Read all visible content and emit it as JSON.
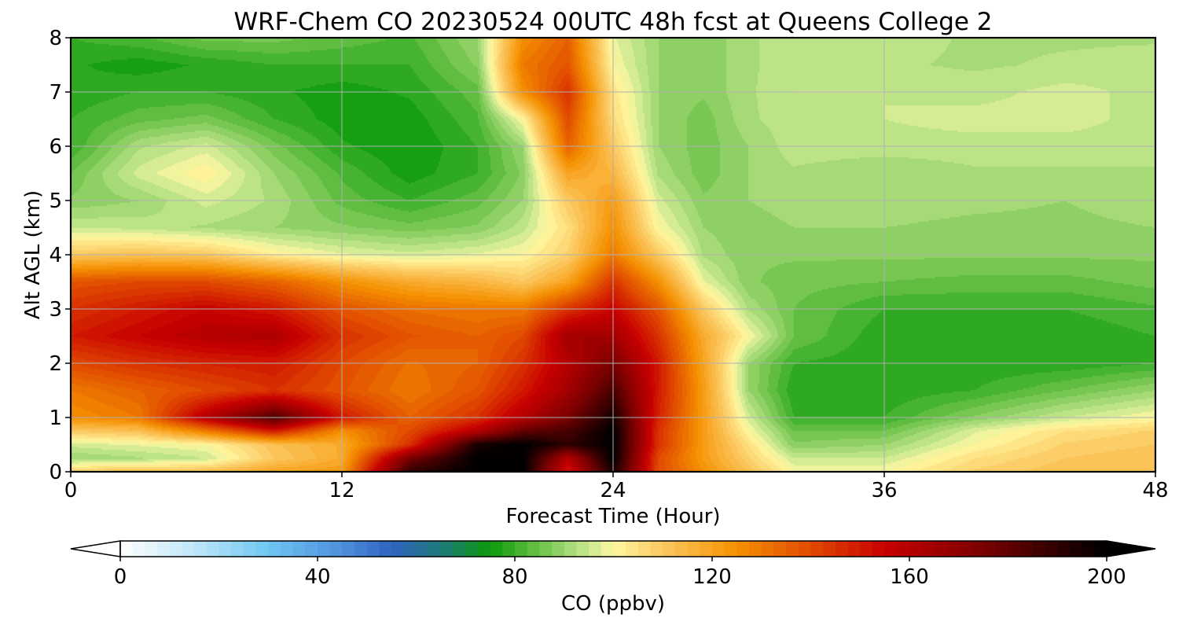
{
  "chart_data": {
    "type": "heatmap",
    "title": "WRF-Chem CO  20230524 00UTC 48h fcst at Queens College 2",
    "xlabel": "Forecast Time (Hour)",
    "ylabel": "Alt AGL (km)",
    "xlim": [
      0,
      48
    ],
    "ylim": [
      0,
      8
    ],
    "x_ticks": [
      0,
      12,
      24,
      36,
      48
    ],
    "y_ticks": [
      0,
      1,
      2,
      3,
      4,
      5,
      6,
      7,
      8
    ],
    "grid": true,
    "colorbar": {
      "label": "CO  (ppbv)",
      "min": 0,
      "max": 200,
      "ticks": [
        0,
        40,
        80,
        120,
        160,
        200
      ],
      "extend": "both",
      "stops": [
        {
          "v": 0,
          "c": "#ffffff"
        },
        {
          "v": 15,
          "c": "#bfe6f8"
        },
        {
          "v": 30,
          "c": "#6ec6f2"
        },
        {
          "v": 45,
          "c": "#4d8fdc"
        },
        {
          "v": 55,
          "c": "#2f63c0"
        },
        {
          "v": 65,
          "c": "#1f7a7a"
        },
        {
          "v": 75,
          "c": "#0a9a0a"
        },
        {
          "v": 85,
          "c": "#6cc24a"
        },
        {
          "v": 95,
          "c": "#c8e890"
        },
        {
          "v": 100,
          "c": "#fff8a0"
        },
        {
          "v": 110,
          "c": "#fcc860"
        },
        {
          "v": 125,
          "c": "#f59000"
        },
        {
          "v": 140,
          "c": "#e04a00"
        },
        {
          "v": 155,
          "c": "#c80000"
        },
        {
          "v": 175,
          "c": "#7a0000"
        },
        {
          "v": 195,
          "c": "#150000"
        },
        {
          "v": 200,
          "c": "#000000"
        }
      ]
    },
    "grid_x": [
      0,
      3,
      6,
      9,
      12,
      15,
      18,
      20,
      22,
      24,
      26,
      28,
      30,
      32,
      36,
      40,
      44,
      48
    ],
    "grid_y": [
      0,
      0.25,
      0.5,
      0.75,
      1,
      1.5,
      2,
      2.5,
      3,
      3.5,
      4,
      4.5,
      5,
      5.5,
      6,
      6.5,
      7,
      7.5,
      8
    ],
    "values": [
      [
        110,
        112,
        113,
        120,
        122,
        190,
        200,
        200,
        150,
        195,
        140,
        125,
        112,
        100,
        100,
        108,
        112,
        112
      ],
      [
        90,
        92,
        95,
        110,
        118,
        175,
        200,
        200,
        160,
        200,
        140,
        122,
        108,
        95,
        95,
        105,
        110,
        112
      ],
      [
        96,
        98,
        100,
        112,
        118,
        145,
        195,
        200,
        190,
        200,
        145,
        122,
        105,
        88,
        90,
        100,
        108,
        110
      ],
      [
        110,
        112,
        130,
        150,
        125,
        140,
        160,
        180,
        185,
        200,
        145,
        122,
        100,
        85,
        85,
        97,
        105,
        108
      ],
      [
        125,
        130,
        160,
        185,
        150,
        135,
        145,
        160,
        175,
        195,
        148,
        122,
        96,
        80,
        80,
        88,
        95,
        100
      ],
      [
        130,
        135,
        140,
        145,
        138,
        130,
        138,
        150,
        165,
        185,
        150,
        122,
        90,
        78,
        78,
        80,
        85,
        90
      ],
      [
        140,
        145,
        148,
        150,
        140,
        132,
        135,
        145,
        160,
        175,
        150,
        120,
        90,
        80,
        78,
        78,
        78,
        80
      ],
      [
        150,
        155,
        160,
        162,
        145,
        138,
        135,
        140,
        165,
        165,
        145,
        118,
        100,
        85,
        78,
        78,
        78,
        80
      ],
      [
        145,
        150,
        155,
        150,
        138,
        132,
        130,
        130,
        145,
        155,
        138,
        110,
        92,
        85,
        80,
        80,
        80,
        82
      ],
      [
        138,
        140,
        140,
        135,
        125,
        118,
        115,
        110,
        120,
        145,
        125,
        98,
        88,
        86,
        85,
        84,
        84,
        86
      ],
      [
        110,
        112,
        110,
        102,
        98,
        96,
        98,
        100,
        108,
        130,
        110,
        92,
        88,
        88,
        88,
        88,
        88,
        88
      ],
      [
        95,
        94,
        92,
        90,
        88,
        86,
        88,
        94,
        105,
        125,
        100,
        90,
        88,
        90,
        90,
        89,
        89,
        90
      ],
      [
        88,
        90,
        96,
        92,
        84,
        80,
        84,
        90,
        110,
        122,
        96,
        88,
        90,
        92,
        92,
        91,
        90,
        92
      ],
      [
        85,
        96,
        102,
        90,
        82,
        76,
        80,
        88,
        120,
        115,
        92,
        86,
        90,
        92,
        90,
        92,
        92,
        92
      ],
      [
        80,
        92,
        96,
        86,
        78,
        75,
        80,
        90,
        135,
        110,
        90,
        86,
        90,
        94,
        94,
        94,
        94,
        94
      ],
      [
        80,
        84,
        86,
        80,
        76,
        76,
        82,
        100,
        140,
        106,
        90,
        86,
        92,
        94,
        95,
        96,
        96,
        94
      ],
      [
        78,
        80,
        80,
        78,
        76,
        78,
        84,
        125,
        145,
        104,
        90,
        88,
        92,
        95,
        95,
        94,
        96,
        94
      ],
      [
        78,
        76,
        78,
        80,
        80,
        80,
        88,
        130,
        138,
        100,
        90,
        88,
        92,
        94,
        93,
        92,
        93,
        94
      ],
      [
        80,
        82,
        86,
        86,
        84,
        82,
        90,
        125,
        135,
        98,
        90,
        88,
        92,
        94,
        94,
        92,
        92,
        92
      ]
    ]
  }
}
